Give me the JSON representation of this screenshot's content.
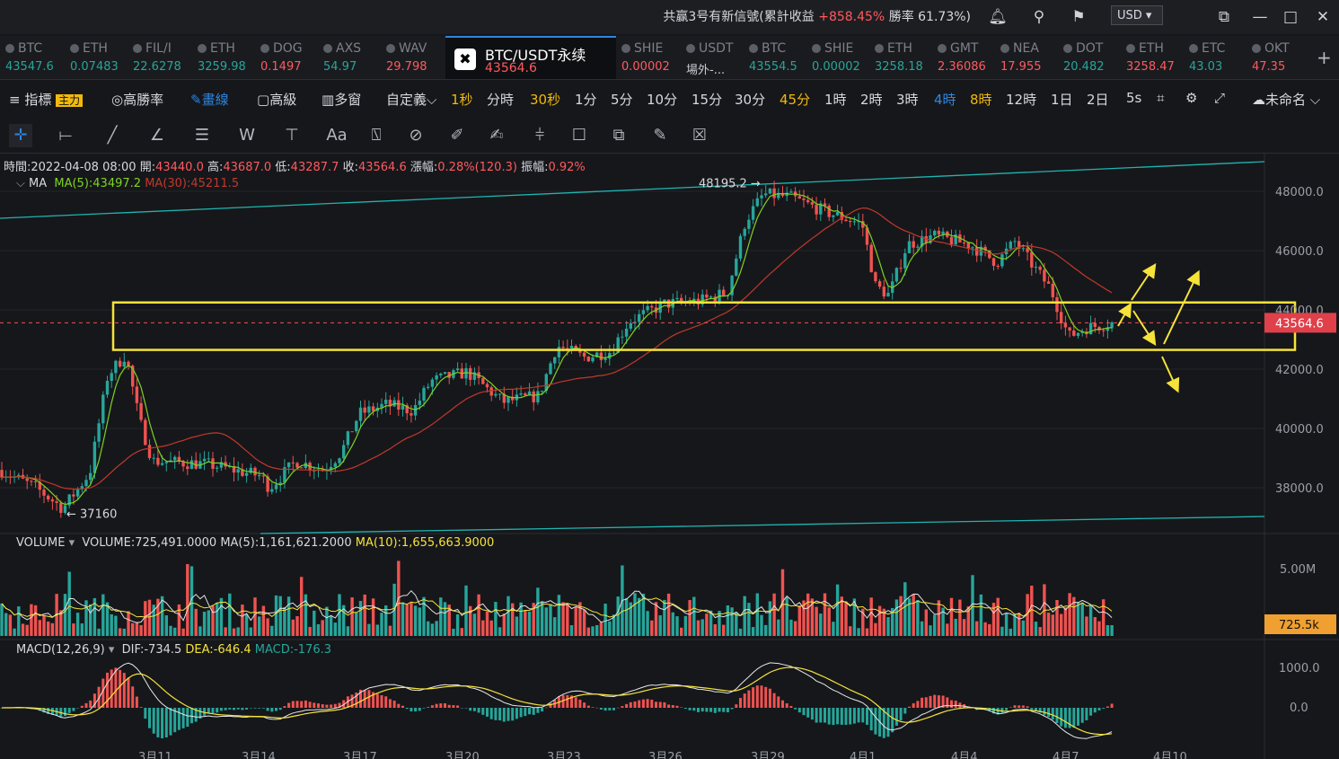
{
  "topbar": {
    "notice_prefix": "共赢3号有新信號(累計收益",
    "notice_gain": "+858.45%",
    "notice_suffix": "勝率 61.73%)",
    "currency": "USD"
  },
  "tabs": [
    {
      "name": "BTC",
      "price": "43547.6",
      "color": "#26a69a"
    },
    {
      "name": "ETH",
      "price": "0.07483",
      "color": "#26a69a"
    },
    {
      "name": "FIL/I",
      "price": "22.6278",
      "color": "#26a69a"
    },
    {
      "name": "ETH",
      "price": "3259.98",
      "color": "#26a69a"
    },
    {
      "name": "DOG",
      "price": "0.1497",
      "color": "#ff5a5f"
    },
    {
      "name": "AXS",
      "price": "54.97",
      "color": "#26a69a"
    },
    {
      "name": "WAV",
      "price": "29.798",
      "color": "#ff5a5f"
    },
    {
      "name": "BTC/USDT永续",
      "price": "43564.6",
      "color": "#ff5a5f",
      "active": true
    },
    {
      "name": "SHIE",
      "price": "0.00002",
      "color": "#ff5a5f"
    },
    {
      "name": "USDT",
      "price": "場外-...",
      "color": "#c9cdd4"
    },
    {
      "name": "BTC",
      "price": "43554.5",
      "color": "#26a69a"
    },
    {
      "name": "SHIE",
      "price": "0.00002",
      "color": "#26a69a"
    },
    {
      "name": "ETH",
      "price": "3258.18",
      "color": "#26a69a"
    },
    {
      "name": "GMT",
      "price": "2.36086",
      "color": "#ff5a5f"
    },
    {
      "name": "NEA",
      "price": "17.955",
      "color": "#ff5a5f"
    },
    {
      "name": "DOT",
      "price": "20.482",
      "color": "#26a69a"
    },
    {
      "name": "ETH",
      "price": "3258.47",
      "color": "#ff5a5f"
    },
    {
      "name": "ETC",
      "price": "43.03",
      "color": "#26a69a"
    },
    {
      "name": "OKT",
      "price": "47.35",
      "color": "#ff5a5f"
    }
  ],
  "timeframes": {
    "indicators": "指標",
    "main_badge": "主力",
    "winrate": "高勝率",
    "draw": "畫線",
    "advanced": "高級",
    "multi": "多窗",
    "custom": "自定義",
    "items": [
      "1秒",
      "分時",
      "30秒",
      "1分",
      "5分",
      "10分",
      "15分",
      "30分",
      "45分",
      "1時",
      "2時",
      "3時",
      "4時",
      "8時",
      "12時",
      "1日",
      "2日",
      "5s"
    ],
    "highlighted": [
      "1秒",
      "30秒",
      "45分",
      "8時"
    ],
    "selected": "4時",
    "layout_name": "未命名"
  },
  "ohlc": {
    "time_label": "時間:",
    "time": "2022-04-08 08:00",
    "open_label": "開:",
    "open": "43440.0",
    "high_label": "高:",
    "high": "43687.0",
    "low_label": "低:",
    "low": "43287.7",
    "close_label": "收:",
    "close": "43564.6",
    "change_label": "漲幅:",
    "change": "0.28%(120.3)",
    "amp_label": "振幅:",
    "amp": "0.92%"
  },
  "ma": {
    "label": "MA",
    "ma5": "MA(5):43497.2",
    "ma30": "MA(30):45211.5"
  },
  "price_axis": {
    "ticks": [
      48000,
      46000,
      44000,
      42000,
      40000,
      38000
    ],
    "tick_labels": [
      "48000.0",
      "46000.0",
      "44000.0",
      "42000.0",
      "40000.0",
      "38000.0"
    ],
    "current": "43564.6",
    "current_value": 43564.6,
    "high_marker": "48195.2",
    "high_value": 48195.2,
    "low_marker": "37160",
    "low_value": 37160
  },
  "zone": {
    "top": 44250,
    "bottom": 42650
  },
  "volume": {
    "label": "VOLUME",
    "value": "VOLUME:725,491.0000",
    "ma5": "MA(5):1,161,621.2000",
    "ma10": "MA(10):1,655,663.9000",
    "axis_labels": [
      "5.00M"
    ],
    "current": "725.5k"
  },
  "macd": {
    "label": "MACD(12,26,9)",
    "dif": "DIF:-734.5",
    "dea": "DEA:-646.4",
    "macd": "MACD:-176.3",
    "axis_labels": [
      "1000.0",
      "0.0"
    ]
  },
  "xaxis": [
    "3月11",
    "3月14",
    "3月17",
    "3月20",
    "3月23",
    "3月26",
    "3月29",
    "4月1",
    "4月4",
    "4月7",
    "4月10"
  ],
  "colors": {
    "up": "#26a69a",
    "down": "#ef5350",
    "ma5": "#7ed321",
    "ma30": "#c0392b",
    "zone": "#f5e33a",
    "trend": "#1fb5b0",
    "accent": "#2e86de"
  }
}
